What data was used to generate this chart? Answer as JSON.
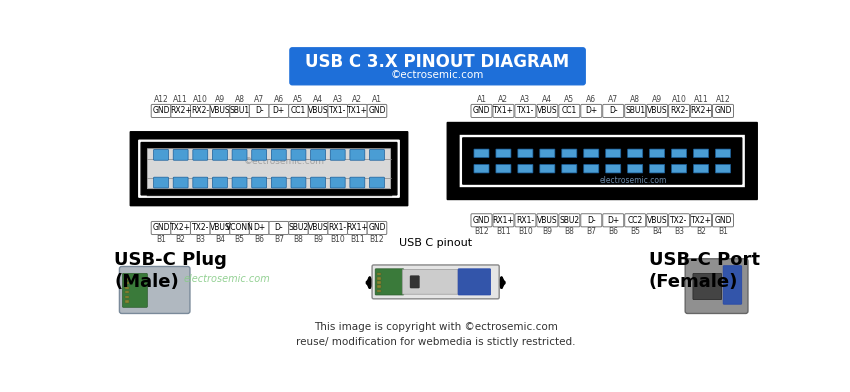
{
  "title": "USB C 3.X PINOUT DIAGRAM",
  "subtitle": "©ectrosemic.com",
  "title_bg": "#1E6FD9",
  "title_fg": "#FFFFFF",
  "bg_color": "#FFFFFF",
  "left_plug_label": "USB-C Plug\n(Male)",
  "right_port_label": "USB-C Port\n(Female)",
  "center_label": "USB C pinout",
  "copyright_bottom": "This image is copyright with ©ectrosemic.com\nreuse/ modification for webmedia is stictly restricted.",
  "watermark": "©ectrosemic.com",
  "watermark2": "electrosemic.com",
  "left_top_pins": [
    "A12",
    "A11",
    "A10",
    "A9",
    "A8",
    "A7",
    "A6",
    "A5",
    "A4",
    "A3",
    "A2",
    "A1"
  ],
  "left_top_labels": [
    "GND",
    "RX2+",
    "RX2-",
    "VBUS",
    "SBU1",
    "D-",
    "D+",
    "CC1",
    "VBUS",
    "TX1-",
    "TX1+",
    "GND"
  ],
  "left_bot_pins": [
    "B1",
    "B2",
    "B3",
    "B4",
    "B5",
    "B6",
    "B7",
    "B8",
    "B9",
    "B10",
    "B11",
    "B12"
  ],
  "left_bot_labels": [
    "GND",
    "TX2+",
    "TX2-",
    "VBUS",
    "VCONN",
    "D+",
    "D-",
    "SBU2",
    "VBUS",
    "RX1-",
    "RX1+",
    "GND"
  ],
  "right_top_pins": [
    "A1",
    "A2",
    "A3",
    "A4",
    "A5",
    "A6",
    "A7",
    "A8",
    "A9",
    "A10",
    "A11",
    "A12"
  ],
  "right_top_labels": [
    "GND",
    "TX1+",
    "TX1-",
    "VBUS",
    "CC1",
    "D+",
    "D-",
    "SBU1",
    "VBUS",
    "RX2-",
    "RX2+",
    "GND"
  ],
  "right_bot_pins": [
    "B12",
    "B11",
    "B10",
    "B9",
    "B8",
    "B7",
    "B6",
    "B5",
    "B4",
    "B3",
    "B2",
    "B1"
  ],
  "right_bot_labels": [
    "GND",
    "RX1+",
    "RX1-",
    "VBUS",
    "SBU2",
    "D-",
    "D+",
    "CC2",
    "VBUS",
    "TX2-",
    "TX2+",
    "GND"
  ],
  "pin_color": "#4A9DD4",
  "pin_outline": "#1A5E9A",
  "label_box_color": "#FFFFFF",
  "label_box_edge": "#777777"
}
